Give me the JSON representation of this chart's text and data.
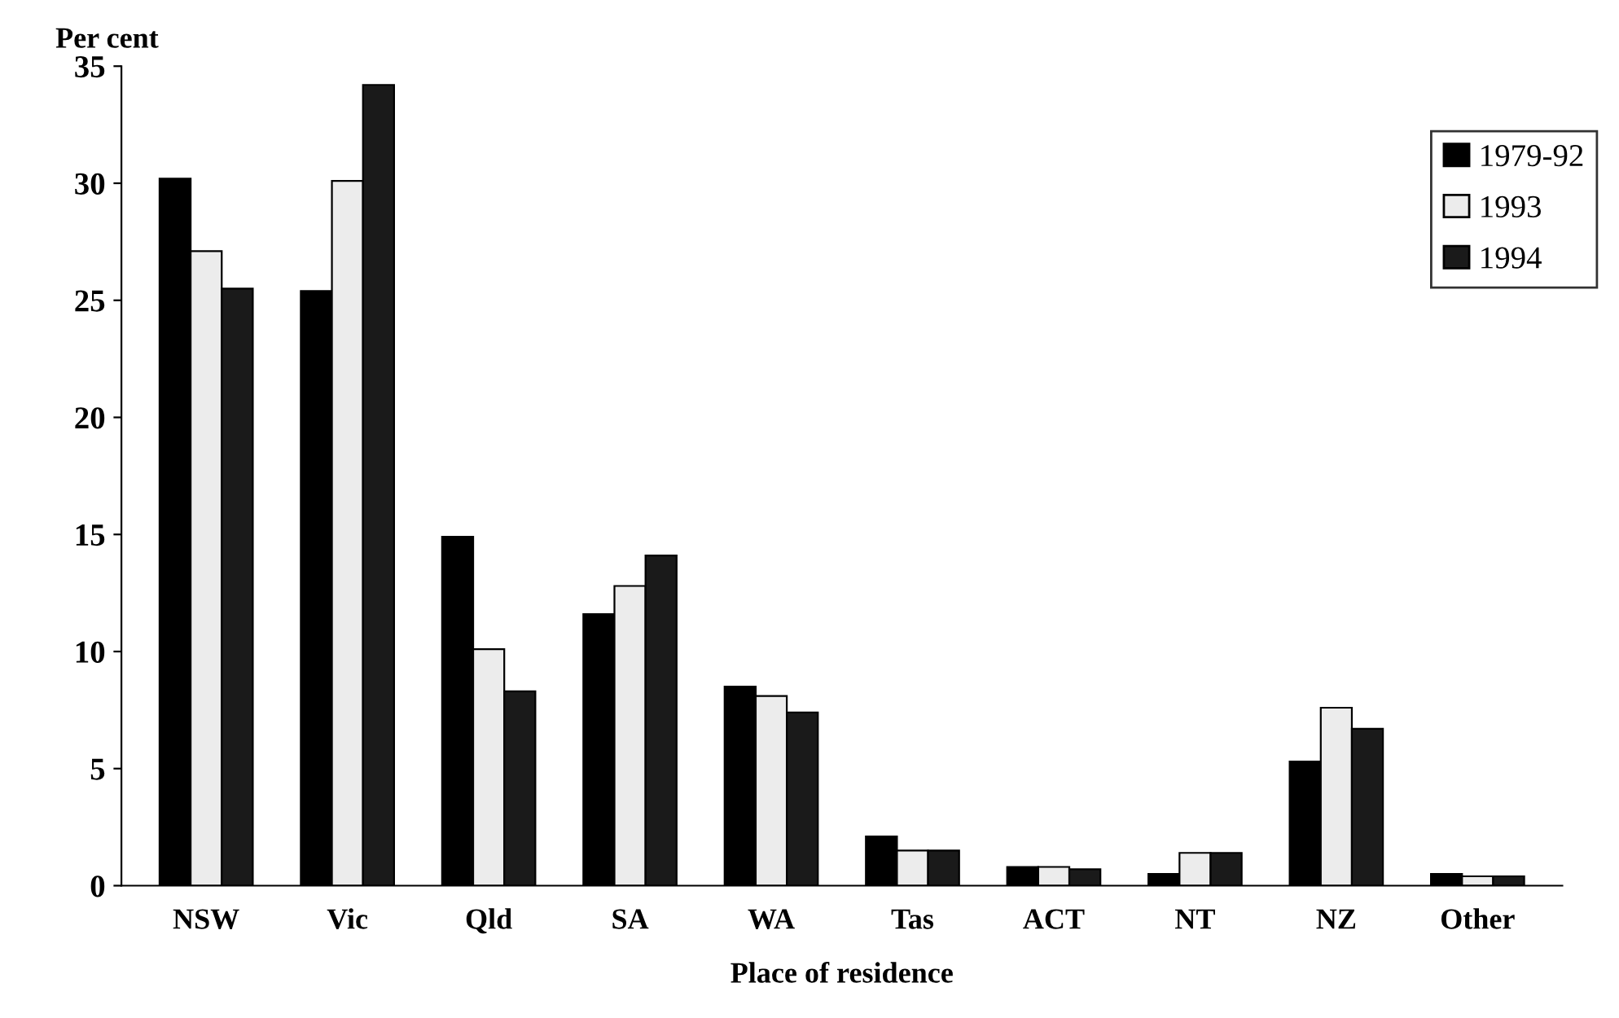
{
  "chart_data": {
    "type": "bar",
    "ylabel": "Per cent",
    "xlabel": "Place of residence",
    "categories": [
      "NSW",
      "Vic",
      "Qld",
      "SA",
      "WA",
      "Tas",
      "ACT",
      "NT",
      "NZ",
      "Other"
    ],
    "series": [
      {
        "name": "1979-92",
        "color": "#000000",
        "values": [
          30.2,
          25.4,
          14.9,
          11.6,
          8.5,
          2.1,
          0.8,
          0.5,
          5.3,
          0.5
        ]
      },
      {
        "name": "1993",
        "color": "#ececec",
        "values": [
          27.1,
          30.1,
          10.1,
          12.8,
          8.1,
          1.5,
          0.8,
          1.4,
          7.6,
          0.4
        ]
      },
      {
        "name": "1994",
        "color": "#1a1a1a",
        "values": [
          25.5,
          34.2,
          8.3,
          14.1,
          7.4,
          1.5,
          0.7,
          1.4,
          6.7,
          0.4
        ]
      }
    ],
    "ylim": [
      0,
      35
    ],
    "yticks": [
      0,
      5,
      10,
      15,
      20,
      25,
      30,
      35
    ],
    "grid": false,
    "legend": "top right"
  }
}
